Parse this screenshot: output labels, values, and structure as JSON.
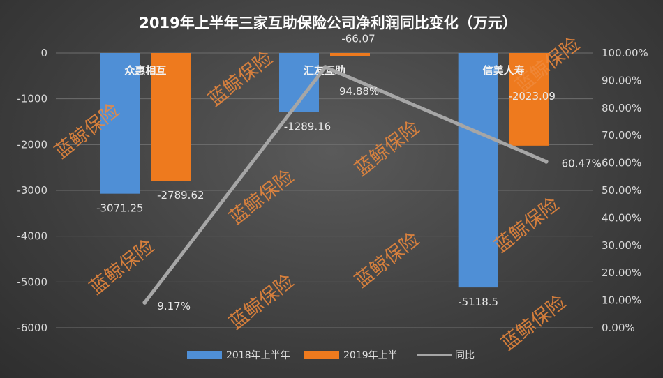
{
  "chart_data": {
    "type": "bar",
    "title": "2019年上半年三家互助保险公司净利润同比变化（万元）",
    "categories": [
      "众惠相互",
      "汇友互助",
      "信美人寿"
    ],
    "series": [
      {
        "name": "2018年上半年",
        "values": [
          -3071.25,
          -1289.16,
          -5118.5
        ],
        "color": "#4f8fd6",
        "labels": [
          "-3071.25",
          "-1289.16",
          "-5118.5"
        ]
      },
      {
        "name": "2019年上半",
        "values": [
          -2789.62,
          -66.07,
          -2023.09
        ],
        "color": "#ee7a1e",
        "labels": [
          "-2789.62",
          "-66.07",
          "-2023.09"
        ]
      }
    ],
    "line_series": {
      "name": "同比",
      "values": [
        9.17,
        94.88,
        60.47
      ],
      "labels": [
        "9.17%",
        "94.88%",
        "60.47%"
      ],
      "color": "#a6a6a6"
    },
    "ylim": [
      -6000,
      0
    ],
    "yticks": [
      "0",
      "-1000",
      "-2000",
      "-3000",
      "-4000",
      "-5000",
      "-6000"
    ],
    "y2lim": [
      0,
      100
    ],
    "y2ticks": [
      "0.00%",
      "10.00%",
      "20.00%",
      "30.00%",
      "40.00%",
      "50.00%",
      "60.00%",
      "70.00%",
      "80.00%",
      "90.00%",
      "100.00%"
    ],
    "grid": true,
    "legend_position": "bottom"
  },
  "watermark": "蓝鲸保险"
}
